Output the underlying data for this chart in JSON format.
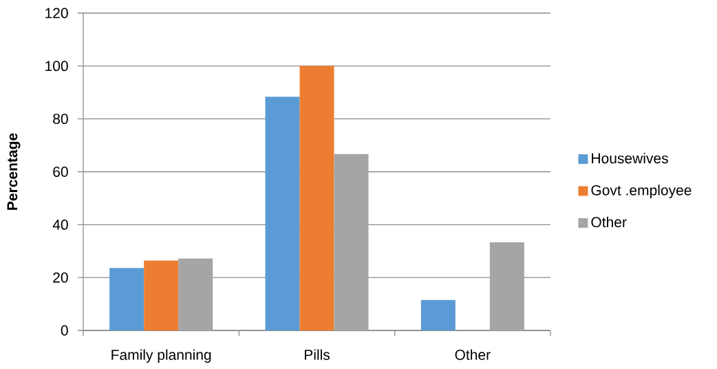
{
  "chart_data": {
    "type": "bar",
    "ylabel": "Percentage",
    "categories": [
      "Family planning",
      "Pills",
      "Other"
    ],
    "series": [
      {
        "name": "Housewives",
        "color": "#5b9bd5",
        "values": [
          23.6,
          88.4,
          11.5
        ]
      },
      {
        "name": "Govt .employee",
        "color": "#ed7d31",
        "values": [
          26.4,
          100,
          0
        ]
      },
      {
        "name": "Other",
        "color": "#a5a5a5",
        "values": [
          27.2,
          66.7,
          33.3
        ]
      }
    ],
    "ylim": [
      0,
      120
    ],
    "yticks": [
      0,
      20,
      40,
      60,
      80,
      100,
      120
    ],
    "grid": "y",
    "legend": "right"
  }
}
